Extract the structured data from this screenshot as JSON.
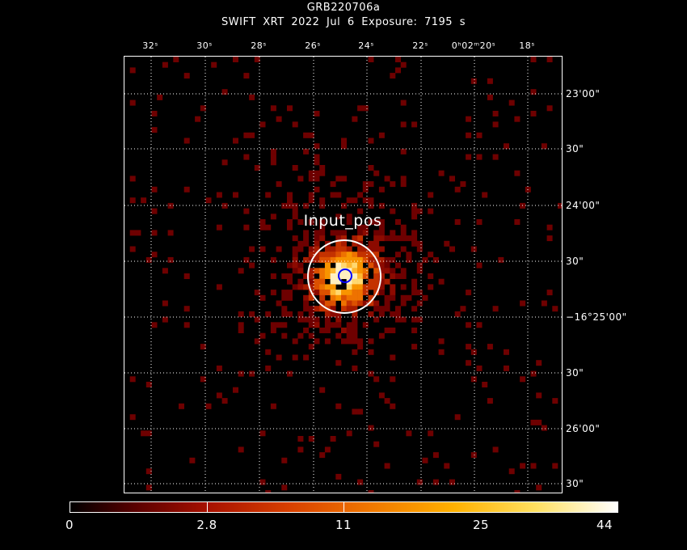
{
  "header": {
    "title": "GRB220706a",
    "subtitle": "SWIFT XRT   2022 Jul  6    Exposure: 7195 s"
  },
  "source_label": "Input_pos",
  "ra_ticks": [
    "32ˢ",
    "30ˢ",
    "28ˢ",
    "26ˢ",
    "24ˢ",
    "22ˢ",
    "0ʰ02ᵐ20ˢ",
    "18ˢ"
  ],
  "dec_ticks": [
    "23'00\"",
    "30\"",
    "24'00\"",
    "30\"",
    "−16°25'00\"",
    "30\"",
    "26'00\"",
    "30\""
  ],
  "colorbar": {
    "labels": [
      "0",
      "2.8",
      "11",
      "25",
      "44"
    ],
    "colors": [
      "#000000",
      "#5a0000",
      "#a61000",
      "#d84000",
      "#f07800",
      "#ffb000",
      "#ffe060",
      "#ffffff"
    ]
  },
  "colors": {
    "background": "#000000",
    "grid": "#ffffff",
    "source_region": "#ffffff",
    "input_position_marker": "#0000ff"
  }
}
